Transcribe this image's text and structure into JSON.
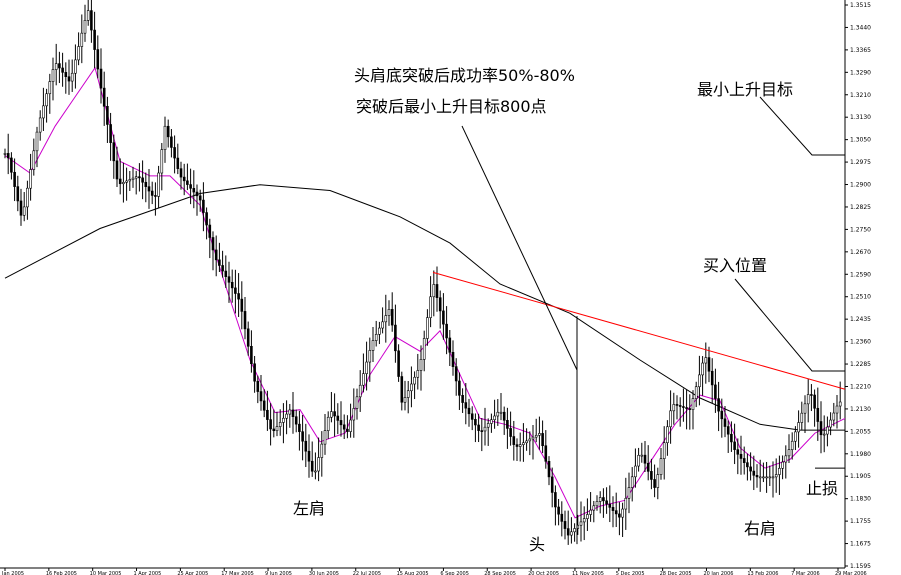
{
  "chart_data": {
    "type": "candlestick",
    "yaxis": {
      "side": "right",
      "ticks": [
        "1.3515",
        "1.3440",
        "1.3365",
        "1.3290",
        "1.3210",
        "1.3130",
        "1.3050",
        "1.2975",
        "1.2900",
        "1.2825",
        "1.2750",
        "1.2670",
        "1.2590",
        "1.2510",
        "1.2435",
        "1.2360",
        "1.2285",
        "1.2210",
        "1.2130",
        "1.2055",
        "1.1980",
        "1.1905",
        "1.1830",
        "1.1755",
        "1.1675",
        "1.1595"
      ],
      "ylim": [
        1.1595,
        1.3515
      ]
    },
    "xaxis": {
      "ticks": [
        "Jan 2005",
        "16 Feb 2005",
        "10 Mar 2005",
        "1 Apr 2005",
        "25 Apr 2005",
        "17 May 2005",
        "9 Jun 2005",
        "30 Jun 2005",
        "22 Jul 2005",
        "15 Aug 2005",
        "6 Sep 2005",
        "28 Sep 2005",
        "20 Oct 2005",
        "11 Nov 2005",
        "5 Dec 2005",
        "28 Dec 2005",
        "20 Jan 2006",
        "13 Feb 2006",
        "7 Mar 2006",
        "29 Mar 2006"
      ]
    },
    "key_points": [
      {
        "x": 0,
        "y": 1.3
      },
      {
        "x": 7,
        "y": 1.301
      },
      {
        "x": 22,
        "y": 1.278
      },
      {
        "x": 38,
        "y": 1.31
      },
      {
        "x": 55,
        "y": 1.332
      },
      {
        "x": 70,
        "y": 1.325
      },
      {
        "x": 84,
        "y": 1.345
      },
      {
        "x": 88,
        "y": 1.35
      },
      {
        "x": 100,
        "y": 1.325
      },
      {
        "x": 118,
        "y": 1.29
      },
      {
        "x": 138,
        "y": 1.293
      },
      {
        "x": 155,
        "y": 1.285
      },
      {
        "x": 165,
        "y": 1.31
      },
      {
        "x": 180,
        "y": 1.293
      },
      {
        "x": 200,
        "y": 1.285
      },
      {
        "x": 215,
        "y": 1.265
      },
      {
        "x": 240,
        "y": 1.25
      },
      {
        "x": 255,
        "y": 1.222
      },
      {
        "x": 272,
        "y": 1.205
      },
      {
        "x": 290,
        "y": 1.213
      },
      {
        "x": 300,
        "y": 1.205
      },
      {
        "x": 314,
        "y": 1.19
      },
      {
        "x": 330,
        "y": 1.213
      },
      {
        "x": 347,
        "y": 1.205
      },
      {
        "x": 372,
        "y": 1.236
      },
      {
        "x": 390,
        "y": 1.248
      },
      {
        "x": 402,
        "y": 1.215
      },
      {
        "x": 420,
        "y": 1.228
      },
      {
        "x": 433,
        "y": 1.257
      },
      {
        "x": 445,
        "y": 1.24
      },
      {
        "x": 460,
        "y": 1.217
      },
      {
        "x": 480,
        "y": 1.205
      },
      {
        "x": 500,
        "y": 1.213
      },
      {
        "x": 515,
        "y": 1.2
      },
      {
        "x": 540,
        "y": 1.205
      },
      {
        "x": 555,
        "y": 1.18
      },
      {
        "x": 568,
        "y": 1.17
      },
      {
        "x": 585,
        "y": 1.176
      },
      {
        "x": 600,
        "y": 1.183
      },
      {
        "x": 620,
        "y": 1.176
      },
      {
        "x": 640,
        "y": 1.199
      },
      {
        "x": 655,
        "y": 1.186
      },
      {
        "x": 672,
        "y": 1.215
      },
      {
        "x": 690,
        "y": 1.213
      },
      {
        "x": 705,
        "y": 1.232
      },
      {
        "x": 718,
        "y": 1.213
      },
      {
        "x": 735,
        "y": 1.199
      },
      {
        "x": 755,
        "y": 1.19
      },
      {
        "x": 775,
        "y": 1.19
      },
      {
        "x": 790,
        "y": 1.2
      },
      {
        "x": 810,
        "y": 1.22
      },
      {
        "x": 822,
        "y": 1.203
      },
      {
        "x": 838,
        "y": 1.215
      },
      {
        "x": 845,
        "y": 1.217
      }
    ],
    "moving_averages": [
      {
        "name": "",
        "color": "#000000",
        "points": [
          [
            5,
            1.258
          ],
          [
            100,
            1.275
          ],
          [
            200,
            1.287
          ],
          [
            260,
            1.29
          ],
          [
            330,
            1.288
          ],
          [
            400,
            1.279
          ],
          [
            450,
            1.27
          ],
          [
            500,
            1.256
          ],
          [
            570,
            1.246
          ],
          [
            640,
            1.23
          ],
          [
            700,
            1.217
          ],
          [
            760,
            1.208
          ],
          [
            800,
            1.206
          ],
          [
            845,
            1.206
          ]
        ]
      },
      {
        "name": "",
        "color": "#cc00cc",
        "points": [
          [
            5,
            1.3
          ],
          [
            30,
            1.294
          ],
          [
            55,
            1.31
          ],
          [
            75,
            1.32
          ],
          [
            95,
            1.33
          ],
          [
            120,
            1.298
          ],
          [
            150,
            1.293
          ],
          [
            170,
            1.293
          ],
          [
            200,
            1.283
          ],
          [
            225,
            1.256
          ],
          [
            250,
            1.23
          ],
          [
            275,
            1.212
          ],
          [
            300,
            1.213
          ],
          [
            320,
            1.202
          ],
          [
            345,
            1.205
          ],
          [
            370,
            1.225
          ],
          [
            395,
            1.238
          ],
          [
            420,
            1.233
          ],
          [
            440,
            1.24
          ],
          [
            460,
            1.225
          ],
          [
            480,
            1.21
          ],
          [
            505,
            1.208
          ],
          [
            530,
            1.205
          ],
          [
            555,
            1.19
          ],
          [
            575,
            1.176
          ],
          [
            600,
            1.18
          ],
          [
            625,
            1.182
          ],
          [
            650,
            1.195
          ],
          [
            675,
            1.208
          ],
          [
            700,
            1.218
          ],
          [
            720,
            1.216
          ],
          [
            740,
            1.2
          ],
          [
            765,
            1.193
          ],
          [
            790,
            1.196
          ],
          [
            815,
            1.205
          ],
          [
            845,
            1.21
          ]
        ]
      }
    ],
    "neckline": {
      "color": "#ff0000",
      "from": [
        433,
        1.26
      ],
      "to": [
        845,
        1.22
      ]
    },
    "vertical_line": {
      "x": 577,
      "from": 1.167,
      "to": 1.245
    },
    "annotations": [
      {
        "text": "头肩底突破后成功率50%-80%"
      },
      {
        "text": "突破后最小上升目标800点"
      },
      {
        "text": "最小上升目标"
      },
      {
        "text": "买入位置"
      },
      {
        "text": "止损"
      },
      {
        "text": "左肩"
      },
      {
        "text": "头"
      },
      {
        "text": "右肩"
      }
    ],
    "target_level": 1.3,
    "buy_level": 1.227,
    "stop_level": 1.193
  }
}
